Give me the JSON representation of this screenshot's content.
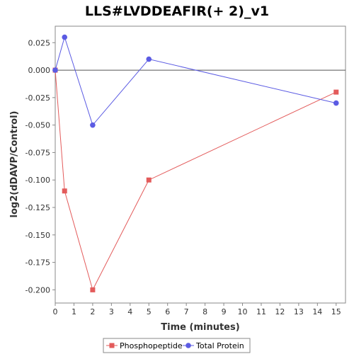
{
  "chart_data": {
    "type": "line",
    "title": "LLS#LVDDEAFIR(+ 2)_v1",
    "xlabel": "Time (minutes)",
    "ylabel": "log2(dDAVP/Control)",
    "xlim": [
      0,
      15.5
    ],
    "ylim": [
      -0.212,
      0.04
    ],
    "xticks": [
      0,
      1,
      2,
      3,
      4,
      5,
      6,
      7,
      8,
      9,
      10,
      11,
      12,
      13,
      14,
      15
    ],
    "yticks": [
      0.025,
      0.0,
      -0.025,
      -0.05,
      -0.075,
      -0.1,
      -0.125,
      -0.15,
      -0.175,
      -0.2
    ],
    "ytick_labels": [
      "0.025",
      "0.000",
      "-0.025",
      "-0.050",
      "-0.075",
      "-0.100",
      "-0.125",
      "-0.150",
      "-0.175",
      "-0.200"
    ],
    "reference_line_y": 0,
    "grid": false,
    "legend_position": "bottom",
    "series": [
      {
        "name": "Phosphopeptide",
        "color": "#e35b5b",
        "marker": "square",
        "x": [
          0,
          0.5,
          2,
          5,
          15
        ],
        "y": [
          0.0,
          -0.11,
          -0.2,
          -0.1,
          -0.02
        ]
      },
      {
        "name": "Total Protein",
        "color": "#5b5be3",
        "marker": "circle",
        "x": [
          0,
          0.5,
          2,
          5,
          15
        ],
        "y": [
          0.0,
          0.03,
          -0.05,
          0.01,
          -0.03
        ]
      }
    ]
  }
}
